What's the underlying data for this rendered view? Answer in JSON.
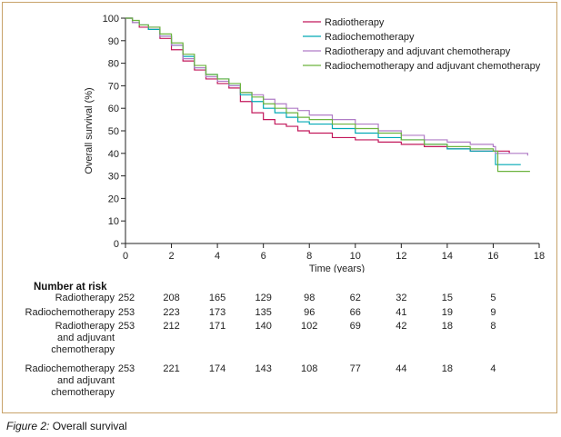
{
  "caption": {
    "figure_label": "Figure 2:",
    "text": " Overall survival"
  },
  "chart_data": {
    "type": "line",
    "step": true,
    "xlabel": "Time (years)",
    "ylabel": "Overall survival (%)",
    "xlim": [
      0,
      18
    ],
    "ylim": [
      0,
      100
    ],
    "xticks": [
      0,
      2,
      4,
      6,
      8,
      10,
      12,
      14,
      16,
      18
    ],
    "yticks": [
      0,
      10,
      20,
      30,
      40,
      50,
      60,
      70,
      80,
      90,
      100
    ],
    "grid": false,
    "legend_position": "top-right",
    "series": [
      {
        "name": "Radiotherapy",
        "color": "#c2185b",
        "points": [
          [
            0,
            100
          ],
          [
            0.3,
            98
          ],
          [
            0.6,
            96
          ],
          [
            1,
            95
          ],
          [
            1.5,
            91
          ],
          [
            2,
            86
          ],
          [
            2.5,
            81
          ],
          [
            3,
            77
          ],
          [
            3.5,
            73
          ],
          [
            4,
            71
          ],
          [
            4.5,
            69
          ],
          [
            5,
            63
          ],
          [
            5.5,
            58
          ],
          [
            6,
            55
          ],
          [
            6.5,
            53
          ],
          [
            7,
            52
          ],
          [
            7.5,
            50
          ],
          [
            8,
            49
          ],
          [
            9,
            47
          ],
          [
            10,
            46
          ],
          [
            11,
            45
          ],
          [
            12,
            44
          ],
          [
            13,
            43
          ],
          [
            14,
            42
          ],
          [
            15,
            41
          ],
          [
            16,
            41
          ],
          [
            16.7,
            40
          ]
        ]
      },
      {
        "name": "Radiochemotherapy",
        "color": "#00a9b5",
        "points": [
          [
            0,
            100
          ],
          [
            0.3,
            98
          ],
          [
            0.6,
            97
          ],
          [
            1,
            95
          ],
          [
            1.5,
            92
          ],
          [
            2,
            88
          ],
          [
            2.5,
            83
          ],
          [
            3,
            78
          ],
          [
            3.5,
            75
          ],
          [
            4,
            73
          ],
          [
            4.5,
            70
          ],
          [
            5,
            66
          ],
          [
            5.5,
            63
          ],
          [
            6,
            60
          ],
          [
            6.5,
            58
          ],
          [
            7,
            56
          ],
          [
            7.5,
            54
          ],
          [
            8,
            53
          ],
          [
            9,
            51
          ],
          [
            10,
            49
          ],
          [
            11,
            47
          ],
          [
            12,
            46
          ],
          [
            13,
            44
          ],
          [
            14,
            42
          ],
          [
            15,
            41
          ],
          [
            16,
            41
          ],
          [
            16.1,
            35
          ],
          [
            17.2,
            35
          ]
        ]
      },
      {
        "name": "Radiotherapy and adjuvant chemotherapy",
        "color": "#b07cc6",
        "points": [
          [
            0,
            100
          ],
          [
            0.3,
            98
          ],
          [
            0.6,
            97
          ],
          [
            1,
            96
          ],
          [
            1.5,
            92
          ],
          [
            2,
            88
          ],
          [
            2.5,
            82
          ],
          [
            3,
            78
          ],
          [
            3.5,
            74
          ],
          [
            4,
            72
          ],
          [
            4.5,
            70
          ],
          [
            5,
            67
          ],
          [
            5.5,
            66
          ],
          [
            6,
            64
          ],
          [
            6.5,
            62
          ],
          [
            7,
            60
          ],
          [
            7.5,
            59
          ],
          [
            8,
            57
          ],
          [
            9,
            55
          ],
          [
            10,
            53
          ],
          [
            11,
            50
          ],
          [
            12,
            48
          ],
          [
            13,
            46
          ],
          [
            14,
            45
          ],
          [
            15,
            44
          ],
          [
            16,
            43
          ],
          [
            16.1,
            40
          ],
          [
            17.5,
            39
          ]
        ]
      },
      {
        "name": "Radiochemotherapy and adjuvant chemotherapy",
        "color": "#6cb33f",
        "points": [
          [
            0,
            100
          ],
          [
            0.3,
            99
          ],
          [
            0.6,
            97
          ],
          [
            1,
            96
          ],
          [
            1.5,
            93
          ],
          [
            2,
            89
          ],
          [
            2.5,
            84
          ],
          [
            3,
            79
          ],
          [
            3.5,
            75
          ],
          [
            4,
            73
          ],
          [
            4.5,
            71
          ],
          [
            5,
            67
          ],
          [
            5.5,
            65
          ],
          [
            6,
            62
          ],
          [
            6.5,
            60
          ],
          [
            7,
            58
          ],
          [
            7.5,
            56
          ],
          [
            8,
            55
          ],
          [
            9,
            53
          ],
          [
            10,
            51
          ],
          [
            11,
            49
          ],
          [
            12,
            46
          ],
          [
            13,
            44
          ],
          [
            14,
            43
          ],
          [
            15,
            42
          ],
          [
            16,
            41
          ],
          [
            16.2,
            32
          ],
          [
            17.6,
            32
          ]
        ]
      }
    ]
  },
  "risk_table": {
    "heading": "Number at risk",
    "times": [
      0,
      2,
      4,
      6,
      8,
      10,
      12,
      14,
      16
    ],
    "rows": [
      {
        "label_lines": [
          "Radiotherapy"
        ],
        "values": [
          "252",
          "208",
          "165",
          "129",
          "98",
          "62",
          "32",
          "15",
          "5"
        ]
      },
      {
        "label_lines": [
          "Radiochemotherapy"
        ],
        "values": [
          "253",
          "223",
          "173",
          "135",
          "96",
          "66",
          "41",
          "19",
          "9"
        ]
      },
      {
        "label_lines": [
          "Radiotherapy",
          "and adjuvant",
          "chemotherapy"
        ],
        "values": [
          "253",
          "212",
          "171",
          "140",
          "102",
          "69",
          "42",
          "18",
          "8"
        ]
      },
      {
        "label_lines": [
          "Radiochemotherapy",
          "and adjuvant",
          "chemotherapy"
        ],
        "values": [
          "253",
          "221",
          "174",
          "143",
          "108",
          "77",
          "44",
          "18",
          "4"
        ]
      }
    ]
  }
}
